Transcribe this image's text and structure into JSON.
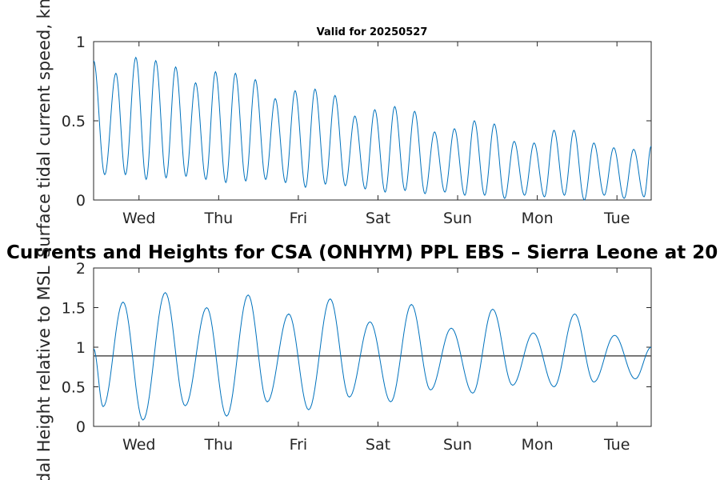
{
  "chart_data": [
    {
      "type": "line",
      "title": "Valid for 20250527",
      "ylabel": "Surface tidal current speed, knots",
      "ylim": [
        0,
        1
      ],
      "yticks": [
        "0",
        "0.5",
        "1"
      ],
      "xlim": [
        0,
        7
      ],
      "x_tick_labels": [
        "Wed",
        "Thu",
        "Fri",
        "Sat",
        "Sun",
        "Mon",
        "Tue"
      ],
      "x_ticks": [
        0.57,
        1.57,
        2.57,
        3.57,
        4.57,
        5.57,
        6.57
      ],
      "series_color": "#0072BD",
      "series": [
        {
          "x": [
            0.0,
            0.14,
            0.28,
            0.4,
            0.53,
            0.66,
            0.78,
            0.91,
            1.03,
            1.16,
            1.28,
            1.41,
            1.53,
            1.66,
            1.78,
            1.91,
            2.03,
            2.16,
            2.28,
            2.41,
            2.53,
            2.66,
            2.78,
            2.91,
            3.03,
            3.16,
            3.28,
            3.41,
            3.53,
            3.66,
            3.78,
            3.91,
            4.03,
            4.16,
            4.28,
            4.41,
            4.53,
            4.66,
            4.78,
            4.91,
            5.03,
            5.16,
            5.28,
            5.41,
            5.53,
            5.66,
            5.78,
            5.91,
            6.03,
            6.16,
            6.28,
            6.41,
            6.53,
            6.66,
            6.78,
            6.91,
            7.0
          ],
          "y": [
            0.88,
            0.16,
            0.8,
            0.16,
            0.9,
            0.13,
            0.88,
            0.14,
            0.84,
            0.15,
            0.74,
            0.13,
            0.81,
            0.11,
            0.8,
            0.12,
            0.76,
            0.13,
            0.64,
            0.11,
            0.69,
            0.08,
            0.7,
            0.1,
            0.66,
            0.09,
            0.53,
            0.07,
            0.57,
            0.05,
            0.59,
            0.06,
            0.56,
            0.04,
            0.43,
            0.05,
            0.45,
            0.03,
            0.5,
            0.03,
            0.48,
            0.01,
            0.37,
            0.03,
            0.36,
            0.02,
            0.44,
            0.03,
            0.44,
            0.0,
            0.36,
            0.03,
            0.33,
            0.01,
            0.32,
            0.02,
            0.34
          ]
        }
      ]
    },
    {
      "type": "line",
      "title": "Currents and Heights for CSA (ONHYM) PPL EBS  – Sierra Leone at 20",
      "ylabel": "Tidal Height relative to MSL",
      "ylim": [
        0,
        2
      ],
      "yticks": [
        "0",
        "0.5",
        "1",
        "1.5",
        "2"
      ],
      "xlim": [
        0,
        7
      ],
      "x_tick_labels": [
        "Wed",
        "Thu",
        "Fri",
        "Sat",
        "Sun",
        "Mon",
        "Tue"
      ],
      "x_ticks": [
        0.57,
        1.57,
        2.57,
        3.57,
        4.57,
        5.57,
        6.57
      ],
      "reference_line": 0.89,
      "series_color": "#0072BD",
      "series": [
        {
          "x": [
            0.0,
            0.12,
            0.37,
            0.62,
            0.9,
            1.15,
            1.42,
            1.67,
            1.94,
            2.18,
            2.45,
            2.7,
            2.97,
            3.21,
            3.47,
            3.73,
            3.99,
            4.23,
            4.49,
            4.76,
            5.01,
            5.26,
            5.52,
            5.78,
            6.04,
            6.28,
            6.54,
            6.8,
            7.0
          ],
          "y": [
            0.98,
            0.25,
            1.57,
            0.08,
            1.69,
            0.26,
            1.5,
            0.13,
            1.66,
            0.31,
            1.42,
            0.21,
            1.61,
            0.37,
            1.32,
            0.31,
            1.54,
            0.46,
            1.24,
            0.42,
            1.48,
            0.52,
            1.18,
            0.5,
            1.42,
            0.56,
            1.15,
            0.6,
            1.0
          ]
        }
      ]
    }
  ]
}
